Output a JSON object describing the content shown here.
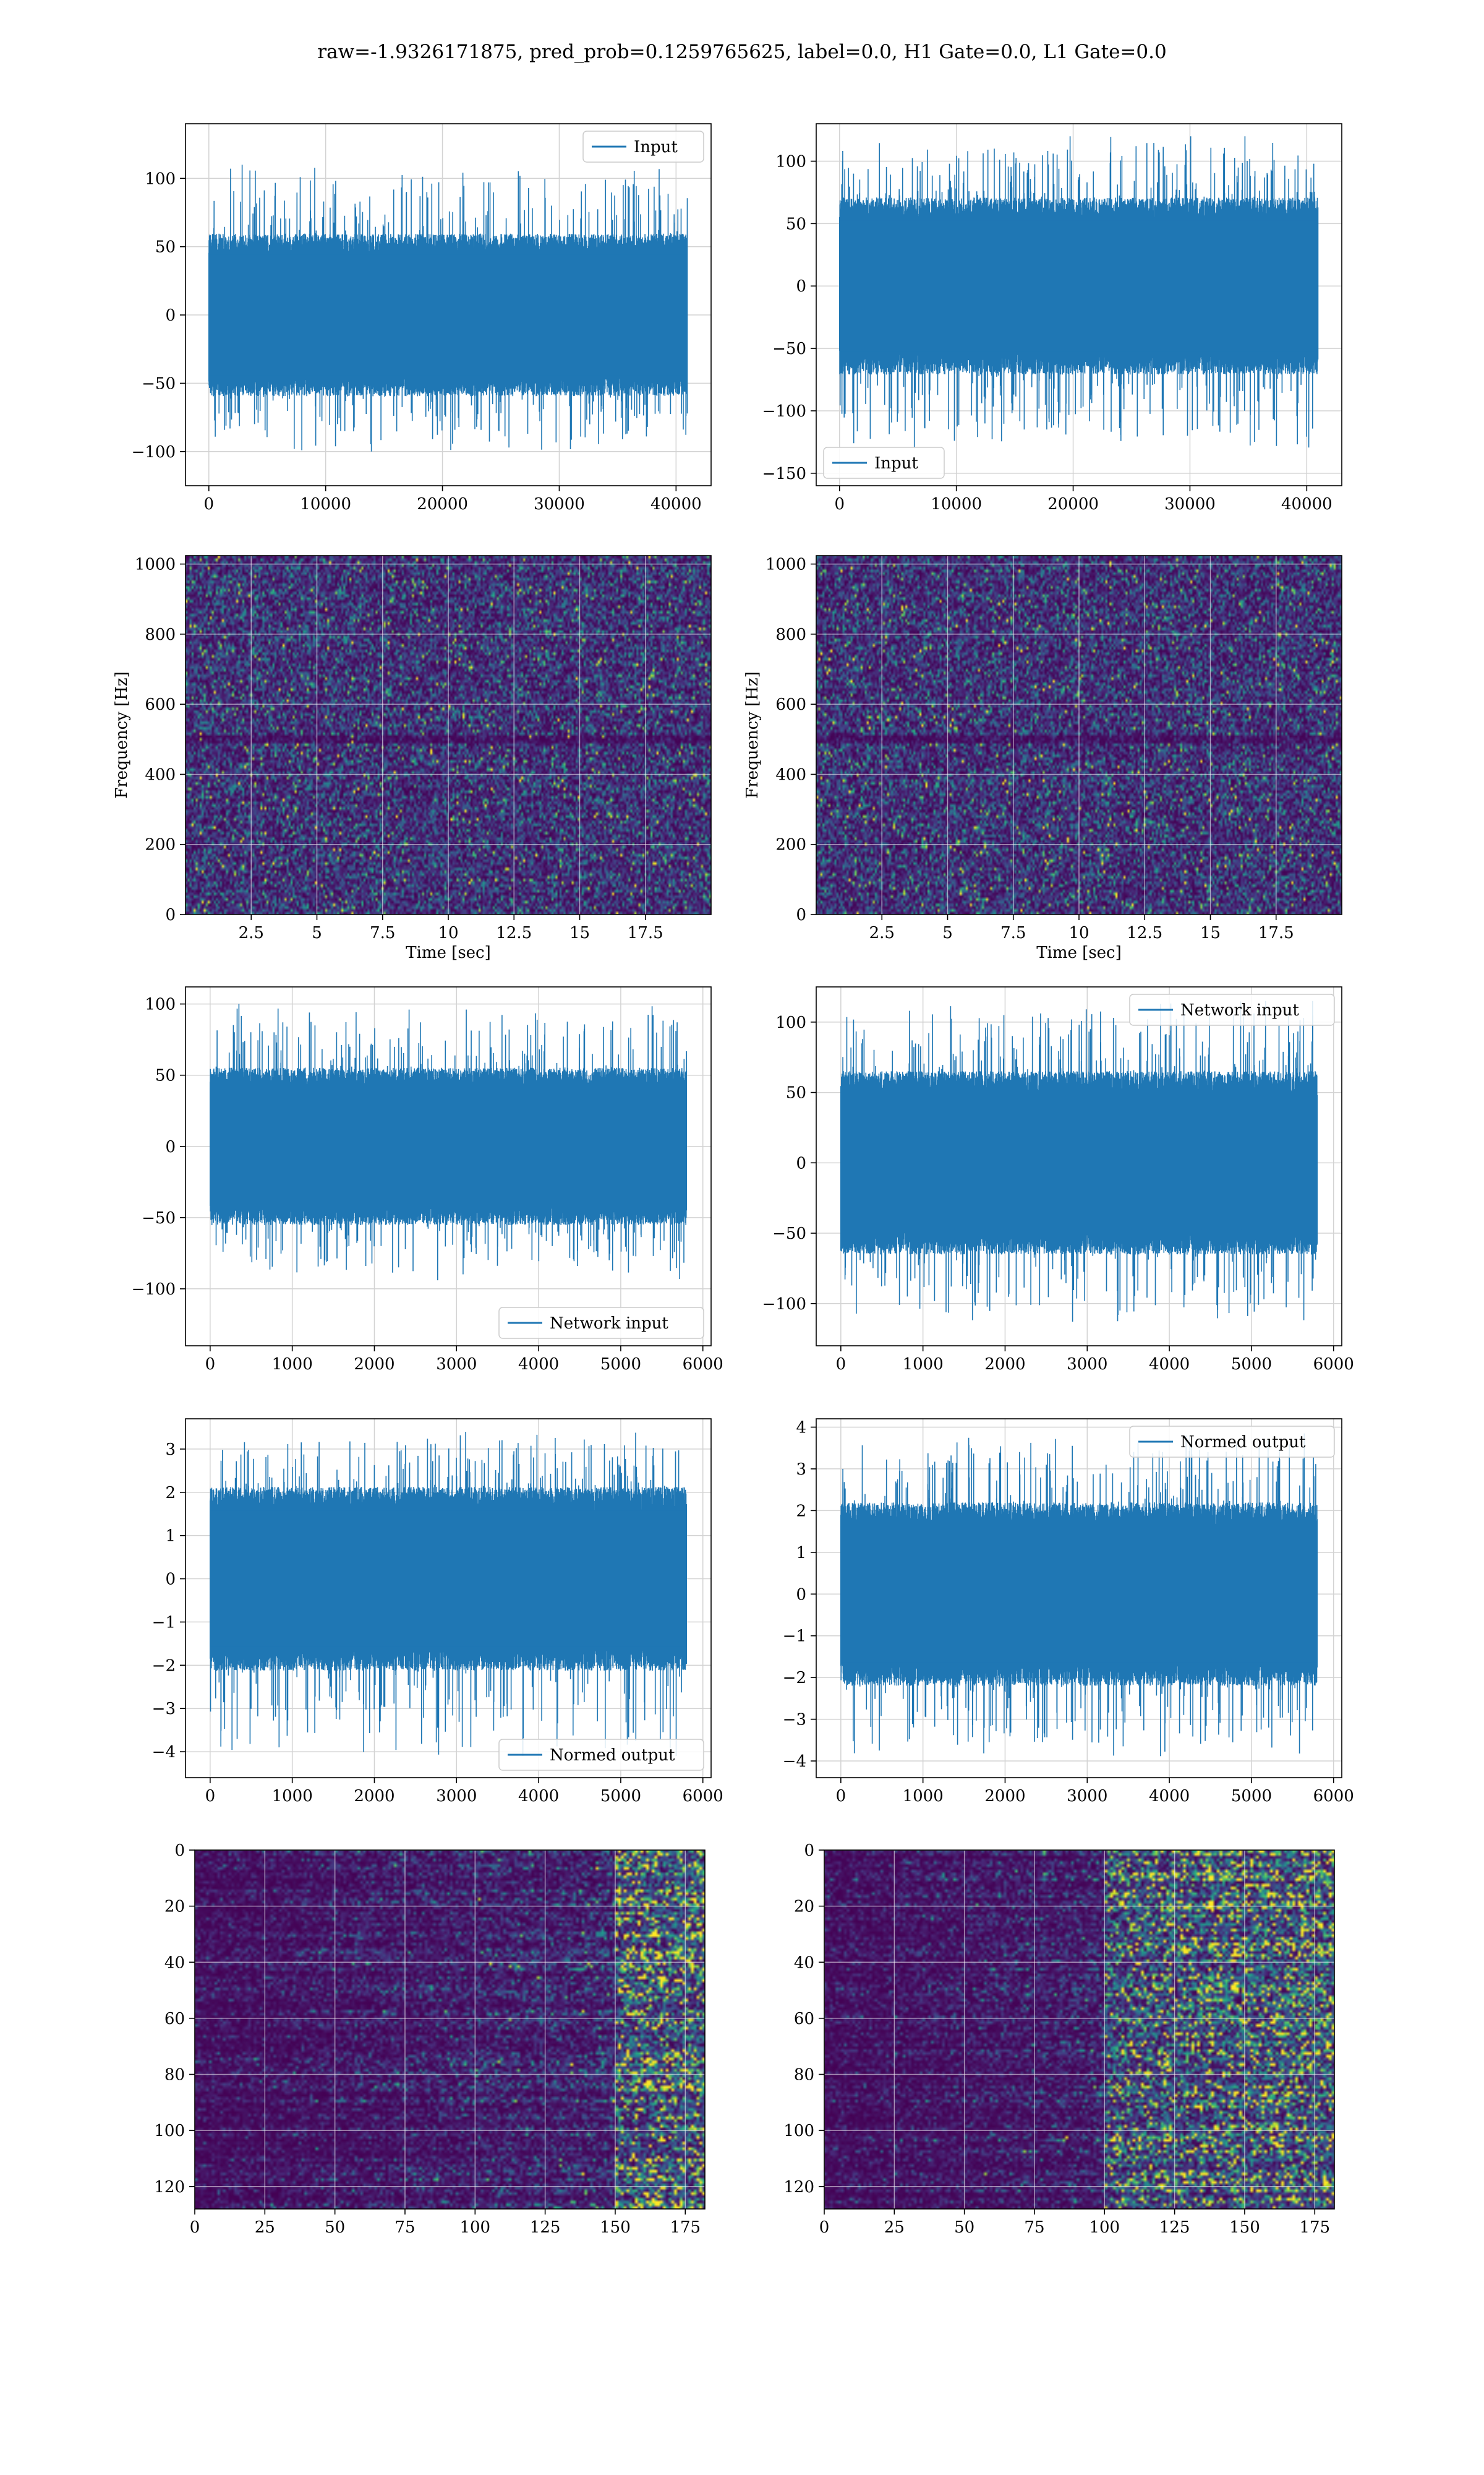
{
  "suptitle": "raw=-1.9326171875, pred_prob=0.1259765625, label=0.0, H1 Gate=0.0, L1 Gate=0.0",
  "colors": {
    "line": "#1f77b4",
    "grid": "#d3d3d3",
    "viridis": [
      "#440154",
      "#482878",
      "#3e4a89",
      "#31688e",
      "#26828e",
      "#1f9e89",
      "#35b779",
      "#6ece58",
      "#b5de2b",
      "#fde725"
    ]
  },
  "chart_data": [
    {
      "id": "h1-input",
      "type": "line",
      "series": [
        {
          "name": "Input",
          "n_samples": 40960,
          "envelope": [
            -100,
            110
          ],
          "mean": 0
        }
      ],
      "xlim": [
        -2000,
        43000
      ],
      "ylim": [
        -125,
        140
      ],
      "xticks": [
        0,
        10000,
        20000,
        30000,
        40000
      ],
      "yticks": [
        -100,
        -50,
        0,
        50,
        100
      ],
      "legend": "top-right",
      "grid": true,
      "xlabel": "",
      "ylabel": ""
    },
    {
      "id": "l1-input",
      "type": "line",
      "series": [
        {
          "name": "Input",
          "n_samples": 40960,
          "envelope": [
            -130,
            120
          ],
          "mean": 0
        }
      ],
      "xlim": [
        -2000,
        43000
      ],
      "ylim": [
        -160,
        130
      ],
      "xticks": [
        0,
        10000,
        20000,
        30000,
        40000
      ],
      "yticks": [
        -150,
        -100,
        -50,
        0,
        50,
        100
      ],
      "legend": "bottom-left",
      "grid": true,
      "xlabel": "",
      "ylabel": ""
    },
    {
      "id": "h1-spectrogram",
      "type": "heatmap",
      "colormap": "viridis",
      "xlim": [
        0,
        20
      ],
      "ylim": [
        0,
        1024
      ],
      "xticks": [
        2.5,
        5.0,
        7.5,
        10.0,
        12.5,
        15.0,
        17.5
      ],
      "yticks": [
        0,
        200,
        400,
        600,
        800,
        1000
      ],
      "xlabel": "Time [sec]",
      "ylabel": "Frequency [Hz]",
      "grid": true
    },
    {
      "id": "l1-spectrogram",
      "type": "heatmap",
      "colormap": "viridis",
      "xlim": [
        0,
        20
      ],
      "ylim": [
        0,
        1024
      ],
      "xticks": [
        2.5,
        5.0,
        7.5,
        10.0,
        12.5,
        15.0,
        17.5
      ],
      "yticks": [
        0,
        200,
        400,
        600,
        800,
        1000
      ],
      "xlabel": "Time [sec]",
      "ylabel": "Frequency [Hz]",
      "grid": true
    },
    {
      "id": "h1-network-input",
      "type": "line",
      "series": [
        {
          "name": "Network input",
          "n_samples": 5800,
          "envelope": [
            -95,
            100
          ],
          "mean": 0
        }
      ],
      "xlim": [
        -300,
        6100
      ],
      "ylim": [
        -140,
        112
      ],
      "xticks": [
        0,
        1000,
        2000,
        3000,
        4000,
        5000,
        6000
      ],
      "yticks": [
        -100,
        -50,
        0,
        50,
        100
      ],
      "legend": "bottom-right",
      "grid": true,
      "xlabel": "",
      "ylabel": ""
    },
    {
      "id": "l1-network-input",
      "type": "line",
      "series": [
        {
          "name": "Network input",
          "n_samples": 5800,
          "envelope": [
            -115,
            115
          ],
          "mean": 0
        }
      ],
      "xlim": [
        -300,
        6100
      ],
      "ylim": [
        -130,
        125
      ],
      "xticks": [
        0,
        1000,
        2000,
        3000,
        4000,
        5000,
        6000
      ],
      "yticks": [
        -100,
        -50,
        0,
        50,
        100
      ],
      "legend": "top-right",
      "grid": true,
      "xlabel": "",
      "ylabel": ""
    },
    {
      "id": "h1-normed-output",
      "type": "line",
      "series": [
        {
          "name": "Normed output",
          "n_samples": 5800,
          "envelope": [
            -4.1,
            3.4
          ],
          "mean": 0
        }
      ],
      "xlim": [
        -300,
        6100
      ],
      "ylim": [
        -4.6,
        3.7
      ],
      "xticks": [
        0,
        1000,
        2000,
        3000,
        4000,
        5000,
        6000
      ],
      "yticks": [
        -4,
        -3,
        -2,
        -1,
        0,
        1,
        2,
        3
      ],
      "legend": "bottom-right",
      "grid": true,
      "xlabel": "",
      "ylabel": ""
    },
    {
      "id": "l1-normed-output",
      "type": "line",
      "series": [
        {
          "name": "Normed output",
          "n_samples": 5800,
          "envelope": [
            -3.9,
            3.85
          ],
          "mean": 0
        }
      ],
      "xlim": [
        -300,
        6100
      ],
      "ylim": [
        -4.4,
        4.2
      ],
      "xticks": [
        0,
        1000,
        2000,
        3000,
        4000,
        5000,
        6000
      ],
      "yticks": [
        -4,
        -3,
        -2,
        -1,
        0,
        1,
        2,
        3,
        4
      ],
      "legend": "top-right",
      "grid": true,
      "xlabel": "",
      "ylabel": ""
    },
    {
      "id": "h1-feature-map",
      "type": "heatmap",
      "colormap": "viridis",
      "xlim": [
        0,
        182
      ],
      "ylim": [
        128,
        0
      ],
      "xticks": [
        0,
        25,
        50,
        75,
        100,
        125,
        150,
        175
      ],
      "yticks": [
        0,
        20,
        40,
        60,
        80,
        100,
        120
      ],
      "hot_region_x": [
        150,
        182
      ],
      "grid": true,
      "xlabel": "",
      "ylabel": ""
    },
    {
      "id": "l1-feature-map",
      "type": "heatmap",
      "colormap": "viridis",
      "xlim": [
        0,
        182
      ],
      "ylim": [
        128,
        0
      ],
      "xticks": [
        0,
        25,
        50,
        75,
        100,
        125,
        150,
        175
      ],
      "yticks": [
        0,
        20,
        40,
        60,
        80,
        100,
        120
      ],
      "hot_region_x": [
        100,
        182
      ],
      "grid": true,
      "xlabel": "",
      "ylabel": ""
    }
  ]
}
